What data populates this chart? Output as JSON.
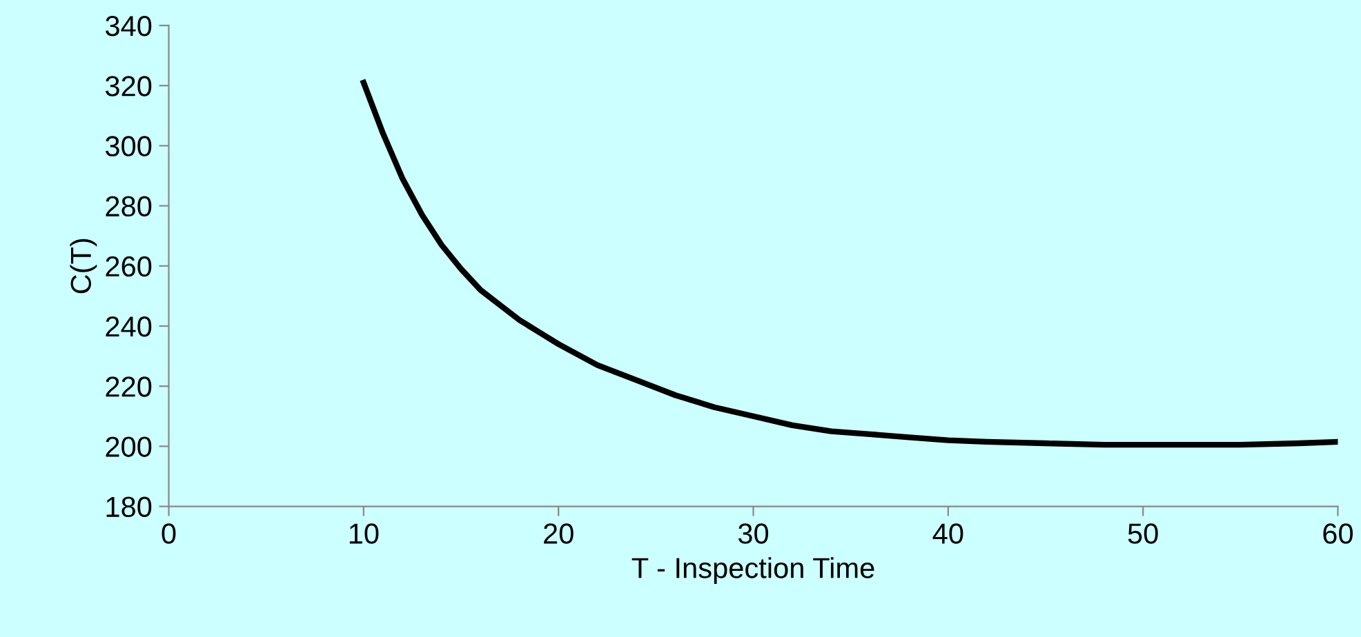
{
  "chart_data": {
    "type": "line",
    "xlabel": "T - Inspection Time",
    "ylabel": "C(T)",
    "series": [
      {
        "color": "#000000",
        "x": [
          10,
          11,
          12,
          13,
          14,
          15,
          16,
          17,
          18,
          19,
          20,
          22,
          24,
          26,
          28,
          30,
          32,
          34,
          36,
          38,
          40,
          42,
          45,
          48,
          50,
          55,
          58,
          60
        ],
        "values": [
          321,
          304,
          289,
          277,
          267,
          259,
          252,
          247,
          242,
          238,
          234,
          227,
          222,
          217,
          213,
          210,
          207,
          205,
          204,
          203,
          202,
          201.5,
          201,
          200.5,
          200.5,
          200.5,
          201,
          201.5
        ]
      }
    ],
    "xlim": [
      0,
      60
    ],
    "xticks": [
      0,
      10,
      20,
      30,
      40,
      50,
      60
    ],
    "ylim": [
      180,
      340
    ],
    "yticks": [
      180,
      200,
      220,
      240,
      260,
      280,
      300,
      320,
      340
    ],
    "grid": false,
    "legend": false,
    "marker": "none",
    "line_style": "solid"
  }
}
